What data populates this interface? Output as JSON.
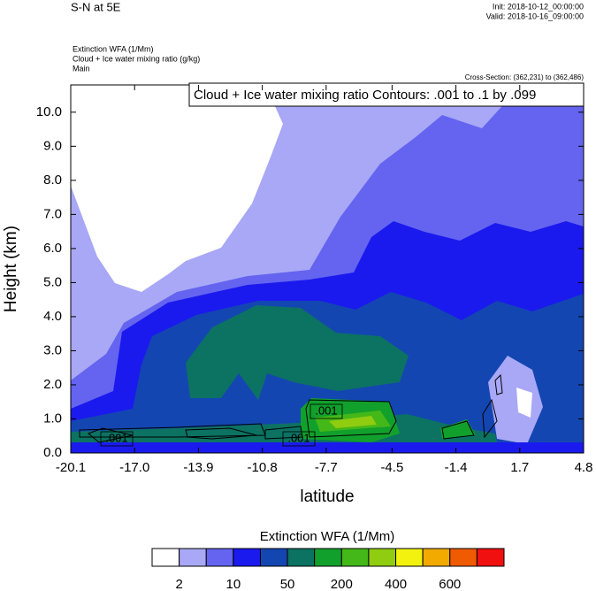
{
  "chart_data": {
    "type": "contour",
    "title": "S-N at 5E",
    "init": "Init: 2018-10-12_00:00:00",
    "valid": "Valid: 2018-10-16_09:00:00",
    "fields": [
      "Extinction WFA   (1/Mm)",
      "Cloud + Ice water mixing ratio   (g/kg)",
      "Main"
    ],
    "cross_section": "Cross-Section: (362,231) to (362,486)",
    "contour_info": "Cloud + Ice water mixing ratio Contours: .001 to .1 by .099",
    "contour_labels": [
      ".001",
      ".001",
      ".001"
    ],
    "xlabel": "latitude",
    "ylabel": "Height (km)",
    "xlim": [
      -20.1,
      4.8
    ],
    "xticks": [
      -20.1,
      {
        "value": -17.0,
        "label": "-17.0"
      },
      -13.9,
      -10.8,
      -7.7,
      -4.5,
      -1.4,
      1.7,
      4.8
    ],
    "ylim": [
      0,
      10.8
    ],
    "yticks": [
      {
        "value": 0,
        "label": "0.0"
      },
      {
        "value": 1,
        "label": "1.0"
      },
      {
        "value": 2,
        "label": "2.0"
      },
      {
        "value": 3,
        "label": "3.0"
      },
      {
        "value": 4,
        "label": "4.0"
      },
      {
        "value": 5,
        "label": "5.0"
      },
      {
        "value": 6,
        "label": "6.0"
      },
      {
        "value": 7,
        "label": "7.0"
      },
      {
        "value": 8,
        "label": "8.0"
      },
      {
        "value": 9,
        "label": "9.0"
      },
      {
        "value": 10,
        "label": "10.0"
      }
    ],
    "colorbar": {
      "title": "Extinction WFA  (1/Mm)",
      "colors": [
        "#ffffff",
        "#a8a8f6",
        "#6464f0",
        "#1a1aee",
        "#1446b2",
        "#0c7262",
        "#12a02c",
        "#44b818",
        "#90cc10",
        "#f2f20e",
        "#f2aa00",
        "#f05a00",
        "#f01010"
      ],
      "labels": [
        2,
        10,
        50,
        200,
        400,
        600
      ]
    }
  }
}
